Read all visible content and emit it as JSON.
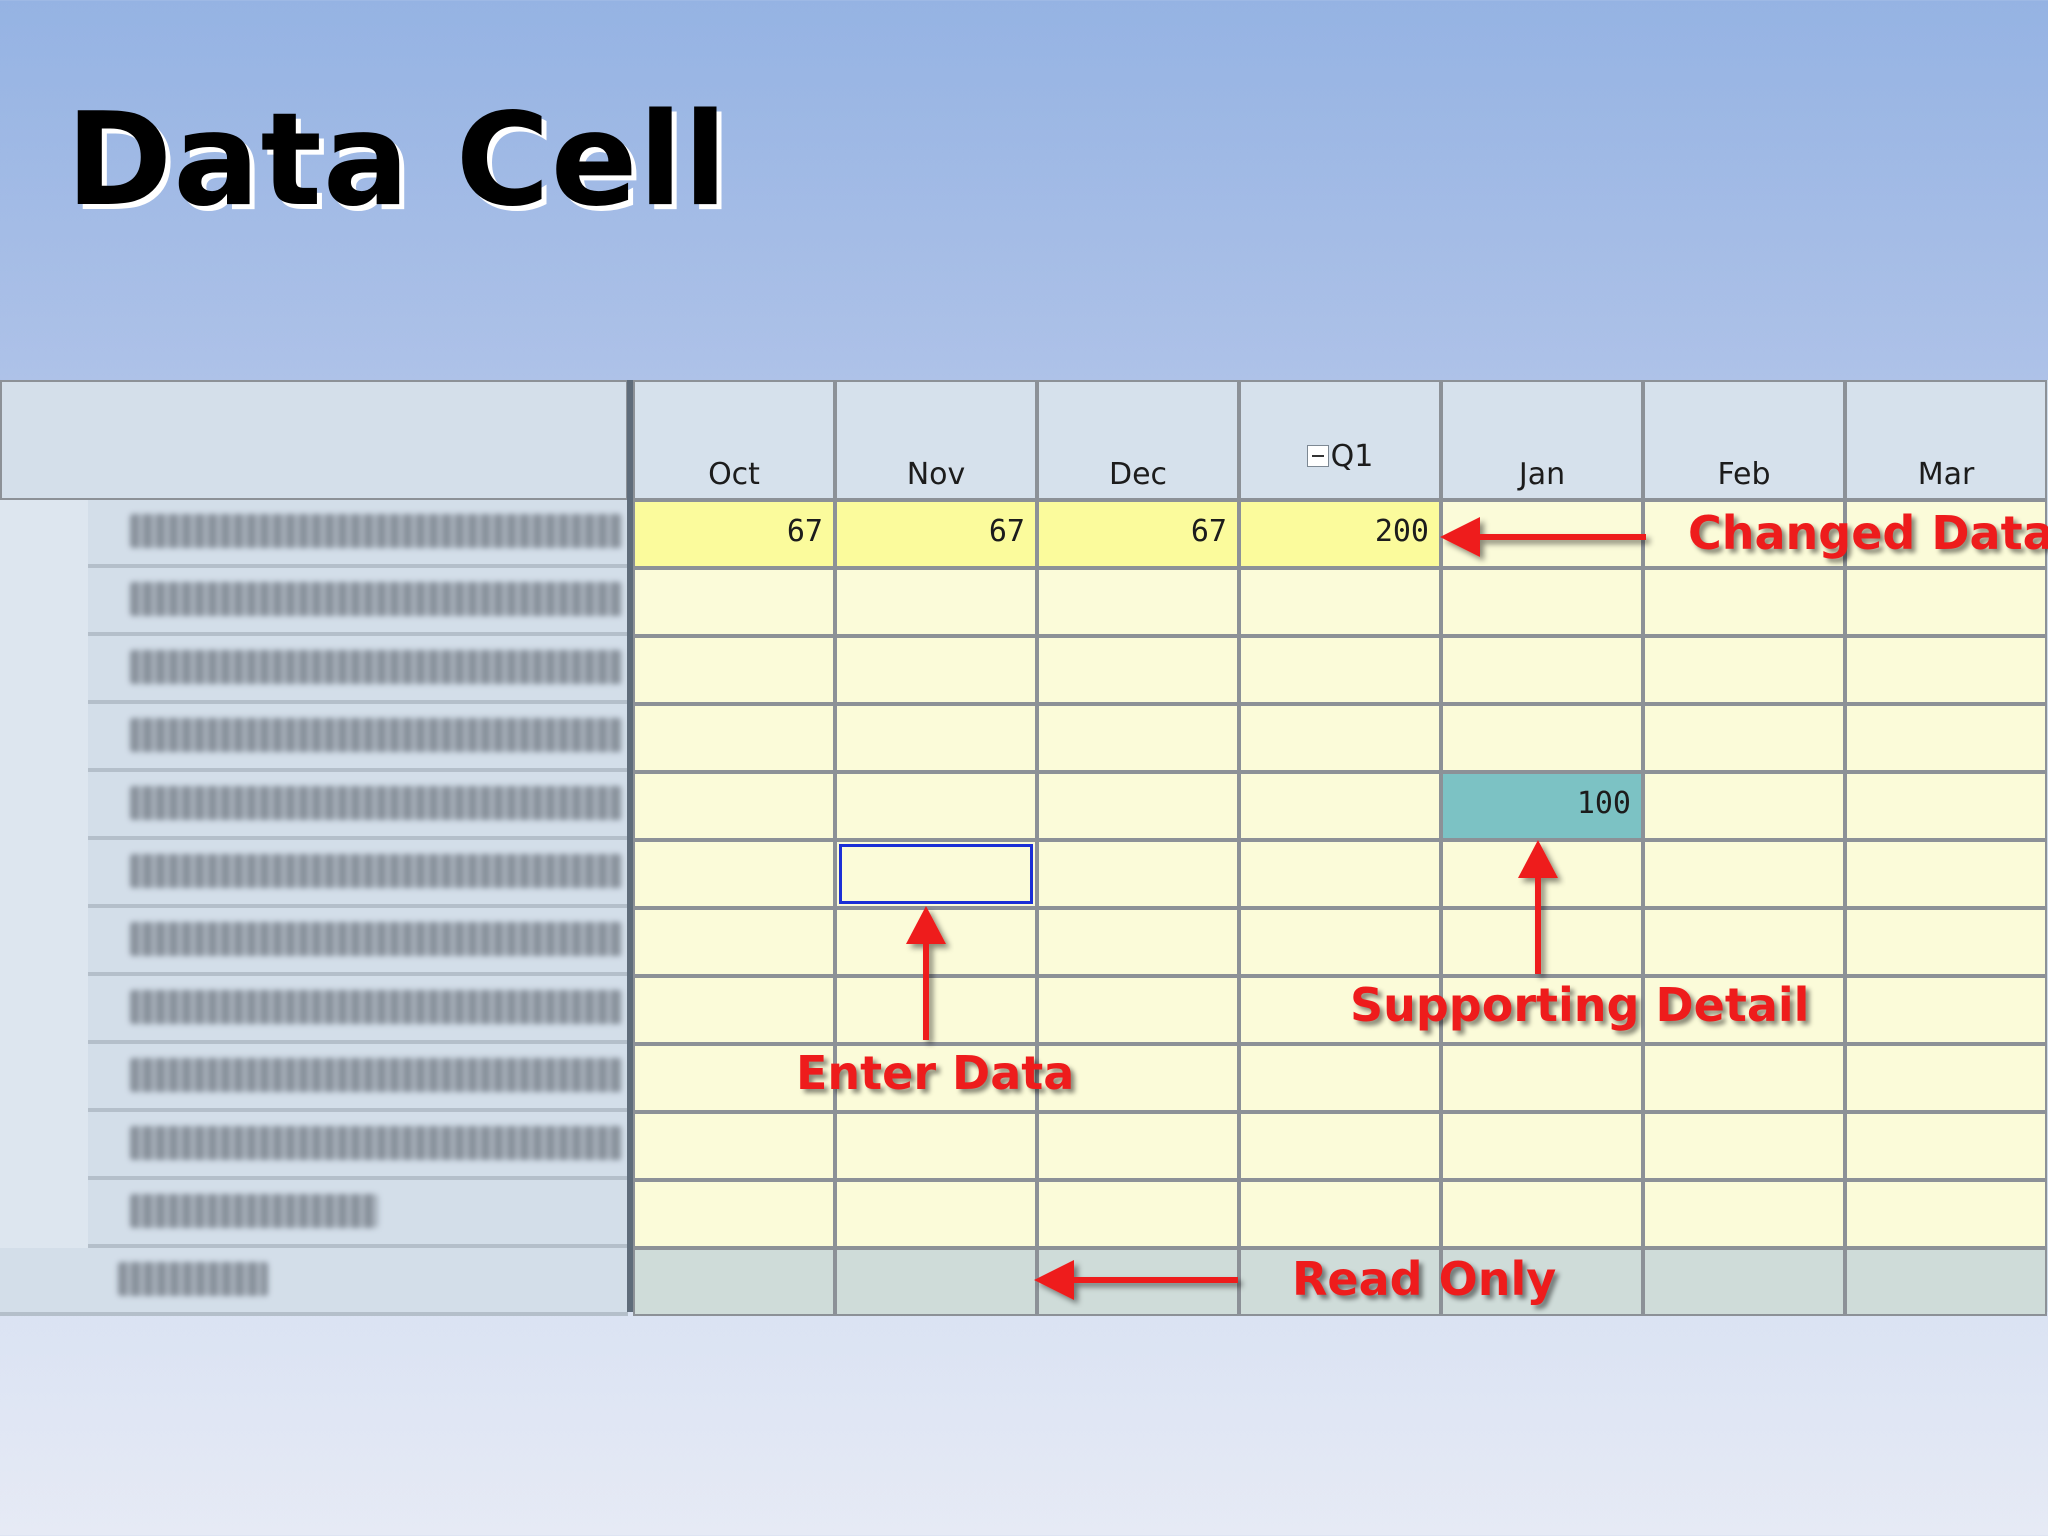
{
  "slide": {
    "title": "Data Cell"
  },
  "grid": {
    "columns": [
      "Oct",
      "Nov",
      "Dec",
      "Q1",
      "Jan",
      "Feb",
      "Mar"
    ],
    "rows": [
      {
        "cells": [
          "67",
          "67",
          "67",
          "200",
          "",
          "",
          ""
        ]
      },
      {
        "cells": [
          "",
          "",
          "",
          "",
          "",
          "",
          ""
        ]
      },
      {
        "cells": [
          "",
          "",
          "",
          "",
          "",
          "",
          ""
        ]
      },
      {
        "cells": [
          "",
          "",
          "",
          "",
          "",
          "",
          ""
        ]
      },
      {
        "cells": [
          "",
          "",
          "",
          "",
          "100",
          "",
          ""
        ]
      },
      {
        "cells": [
          "",
          "",
          "",
          "",
          "",
          "",
          ""
        ]
      },
      {
        "cells": [
          "",
          "",
          "",
          "",
          "",
          "",
          ""
        ]
      },
      {
        "cells": [
          "",
          "",
          "",
          "",
          "",
          "",
          ""
        ]
      },
      {
        "cells": [
          "",
          "",
          "",
          "",
          "",
          "",
          ""
        ]
      },
      {
        "cells": [
          "",
          "",
          "",
          "",
          "",
          "",
          ""
        ]
      },
      {
        "cells": [
          "",
          "",
          "",
          "",
          "",
          "",
          ""
        ]
      },
      {
        "cells": [
          "",
          "",
          "",
          "",
          "",
          "",
          ""
        ]
      }
    ]
  },
  "callouts": {
    "changed": "Changed Data",
    "supporting": "Supporting Detail",
    "enter": "Enter Data",
    "readonly": "Read Only"
  },
  "colors": {
    "editable": "#fbfbd9",
    "changed": "#fbfb9c",
    "supporting_detail": "#7cc2c4",
    "read_only": "#cfdcd9",
    "selection_border": "#1b2fd6",
    "callout": "#ee1c1c"
  },
  "icons": {
    "q1_toggle": "collapse-minus-icon"
  }
}
